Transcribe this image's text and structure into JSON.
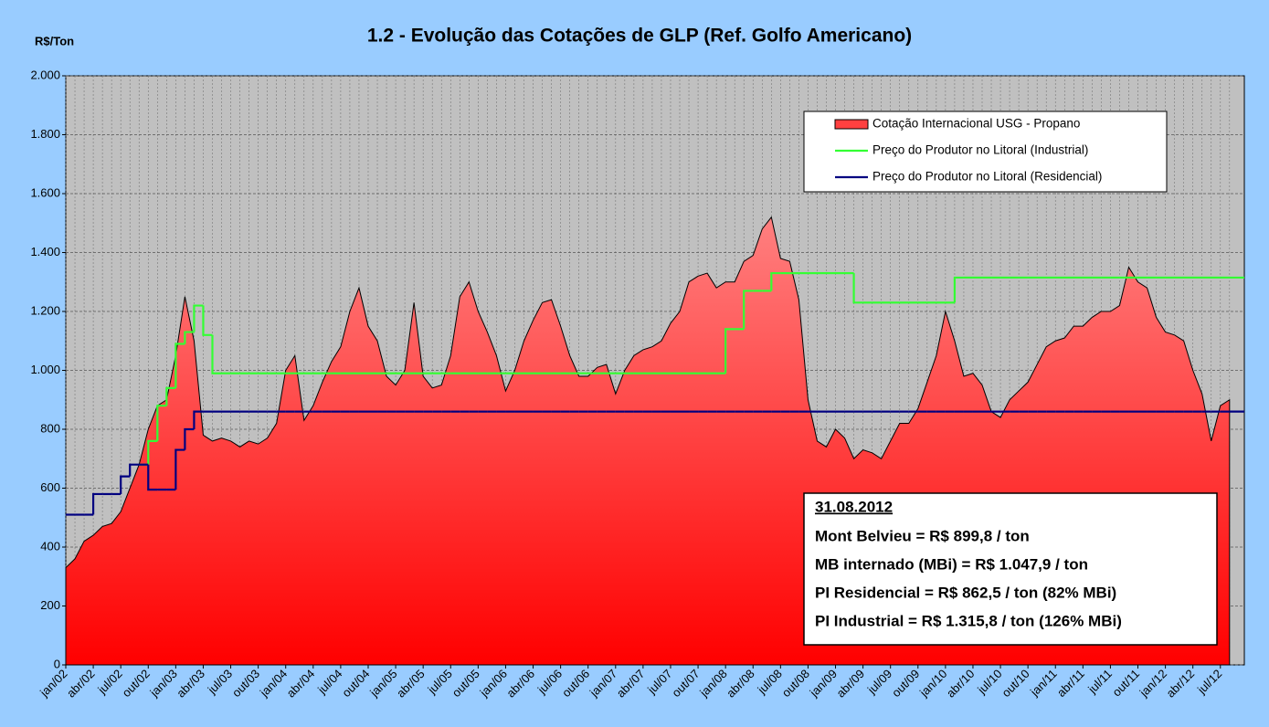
{
  "chart_data": {
    "type": "area-step",
    "title": "1.2 - Evolução das Cotações de GLP (Ref. Golfo Americano)",
    "y_label": "R$/Ton",
    "categories": [
      "jan/02",
      null,
      null,
      "abr/02",
      null,
      null,
      "jul/02",
      null,
      null,
      "out/02",
      null,
      null,
      "jan/03",
      null,
      null,
      "abr/03",
      null,
      null,
      "jul/03",
      null,
      null,
      "out/03",
      null,
      null,
      "jan/04",
      null,
      null,
      "abr/04",
      null,
      null,
      "jul/04",
      null,
      null,
      "out/04",
      null,
      null,
      "jan/05",
      null,
      null,
      "abr/05",
      null,
      null,
      "jul/05",
      null,
      null,
      "out/05",
      null,
      null,
      "jan/06",
      null,
      null,
      "abr/06",
      null,
      null,
      "jul/06",
      null,
      null,
      "out/06",
      null,
      null,
      "jan/07",
      null,
      null,
      "abr/07",
      null,
      null,
      "jul/07",
      null,
      null,
      "out/07",
      null,
      null,
      "jan/08",
      null,
      null,
      "abr/08",
      null,
      null,
      "jul/08",
      null,
      null,
      "out/08",
      null,
      null,
      "jan/09",
      null,
      null,
      "abr/09",
      null,
      null,
      "jul/09",
      null,
      null,
      "out/09",
      null,
      null,
      "jan/10",
      null,
      null,
      "abr/10",
      null,
      null,
      "jul/10",
      null,
      null,
      "out/10",
      null,
      null,
      "jan/11",
      null,
      null,
      "abr/11",
      null,
      null,
      "jul/11",
      null,
      null,
      "out/11",
      null,
      null,
      "jan/12",
      null,
      null,
      "abr/12",
      null,
      null,
      "jul/12",
      null
    ],
    "series": [
      {
        "name": "Cotação Internacional USG - Propano",
        "color": "#ff0000",
        "kind": "area",
        "values": [
          330,
          360,
          420,
          440,
          470,
          480,
          520,
          600,
          680,
          800,
          880,
          900,
          1050,
          1250,
          1100,
          780,
          760,
          770,
          760,
          740,
          760,
          750,
          770,
          820,
          1000,
          1050,
          830,
          880,
          960,
          1030,
          1080,
          1200,
          1280,
          1150,
          1100,
          980,
          950,
          1000,
          1230,
          980,
          940,
          950,
          1050,
          1250,
          1300,
          1200,
          1130,
          1050,
          930,
          1000,
          1100,
          1170,
          1230,
          1240,
          1150,
          1050,
          980,
          980,
          1010,
          1020,
          920,
          1000,
          1050,
          1070,
          1080,
          1100,
          1160,
          1200,
          1300,
          1320,
          1330,
          1280,
          1300,
          1300,
          1370,
          1390,
          1480,
          1520,
          1380,
          1370,
          1240,
          900,
          760,
          740,
          800,
          770,
          700,
          730,
          720,
          700,
          760,
          820,
          820,
          870,
          960,
          1050,
          1200,
          1100,
          980,
          990,
          950,
          860,
          840,
          900,
          930,
          960,
          1020,
          1080,
          1100,
          1110,
          1150,
          1150,
          1180,
          1200,
          1200,
          1220,
          1350,
          1300,
          1280,
          1180,
          1130,
          1120,
          1100,
          1000,
          920,
          760,
          880,
          900
        ]
      },
      {
        "name": "Preço do Produtor no Litoral (Industrial)",
        "color": "#33ff33",
        "kind": "step",
        "values": [
          null,
          null,
          null,
          null,
          null,
          null,
          null,
          null,
          680,
          760,
          880,
          940,
          1090,
          1130,
          1220,
          1120,
          990,
          990,
          990,
          990,
          990,
          990,
          990,
          990,
          990,
          990,
          990,
          990,
          990,
          990,
          990,
          990,
          990,
          990,
          990,
          990,
          990,
          990,
          990,
          990,
          990,
          990,
          990,
          990,
          990,
          990,
          990,
          990,
          990,
          990,
          990,
          990,
          990,
          990,
          990,
          990,
          990,
          990,
          990,
          990,
          990,
          990,
          990,
          990,
          990,
          990,
          990,
          990,
          990,
          990,
          990,
          990,
          1140,
          1140,
          1270,
          1270,
          1270,
          1330,
          1330,
          1330,
          1330,
          1330,
          1330,
          1330,
          1330,
          1330,
          1230,
          1230,
          1230,
          1230,
          1230,
          1230,
          1230,
          1230,
          1230,
          1230,
          1230,
          1315,
          1315,
          1315,
          1315,
          1315,
          1315,
          1315,
          1315,
          1315,
          1315,
          1315,
          1315,
          1315,
          1315,
          1315,
          1315,
          1315,
          1315,
          1315,
          1315,
          1315,
          1315,
          1315,
          1315,
          1315,
          1315,
          1315,
          1315,
          1315,
          1315,
          1315
        ]
      },
      {
        "name": "Preço do Produtor no Litoral (Residencial)",
        "color": "#000080",
        "kind": "step",
        "values": [
          510,
          510,
          510,
          580,
          580,
          580,
          640,
          680,
          680,
          595,
          595,
          595,
          730,
          800,
          860,
          860,
          860,
          860,
          860,
          860,
          860,
          860,
          860,
          860,
          860,
          860,
          860,
          860,
          860,
          860,
          860,
          860,
          860,
          860,
          860,
          860,
          860,
          860,
          860,
          860,
          860,
          860,
          860,
          860,
          860,
          860,
          860,
          860,
          860,
          860,
          860,
          860,
          860,
          860,
          860,
          860,
          860,
          860,
          860,
          860,
          860,
          860,
          860,
          860,
          860,
          860,
          860,
          860,
          860,
          860,
          860,
          860,
          860,
          860,
          860,
          860,
          860,
          860,
          860,
          860,
          860,
          860,
          860,
          860,
          860,
          860,
          860,
          860,
          860,
          860,
          860,
          860,
          860,
          860,
          860,
          860,
          860,
          860,
          860,
          860,
          860,
          860,
          860,
          860,
          860,
          860,
          860,
          860,
          860,
          860,
          860,
          860,
          860,
          860,
          860,
          860,
          860,
          860,
          860,
          860,
          860,
          860,
          860,
          860,
          860,
          860,
          860,
          860
        ]
      }
    ],
    "ylim": [
      0,
      2000
    ],
    "yticks": [
      0,
      200,
      400,
      600,
      800,
      {
        "value": 1000,
        "label": "1.000"
      },
      {
        "value": 1200,
        "label": "1.200"
      },
      {
        "value": 1400,
        "label": "1.400"
      },
      {
        "value": 1600,
        "label": "1.600"
      },
      {
        "value": 1800,
        "label": "1.800"
      },
      {
        "value": 2000,
        "label": "2.000"
      }
    ],
    "grid": true,
    "legend": "top-right",
    "annotations": [
      "31.08.2012",
      "Mont Belvieu = R$ 899,8 / ton",
      "MB internado (MBi) = R$ 1.047,9 / ton",
      "PI Residencial = R$ 862,5 / ton (82% MBi)",
      "PI Industrial = R$ 1.315,8 / ton (126% MBi)"
    ]
  }
}
